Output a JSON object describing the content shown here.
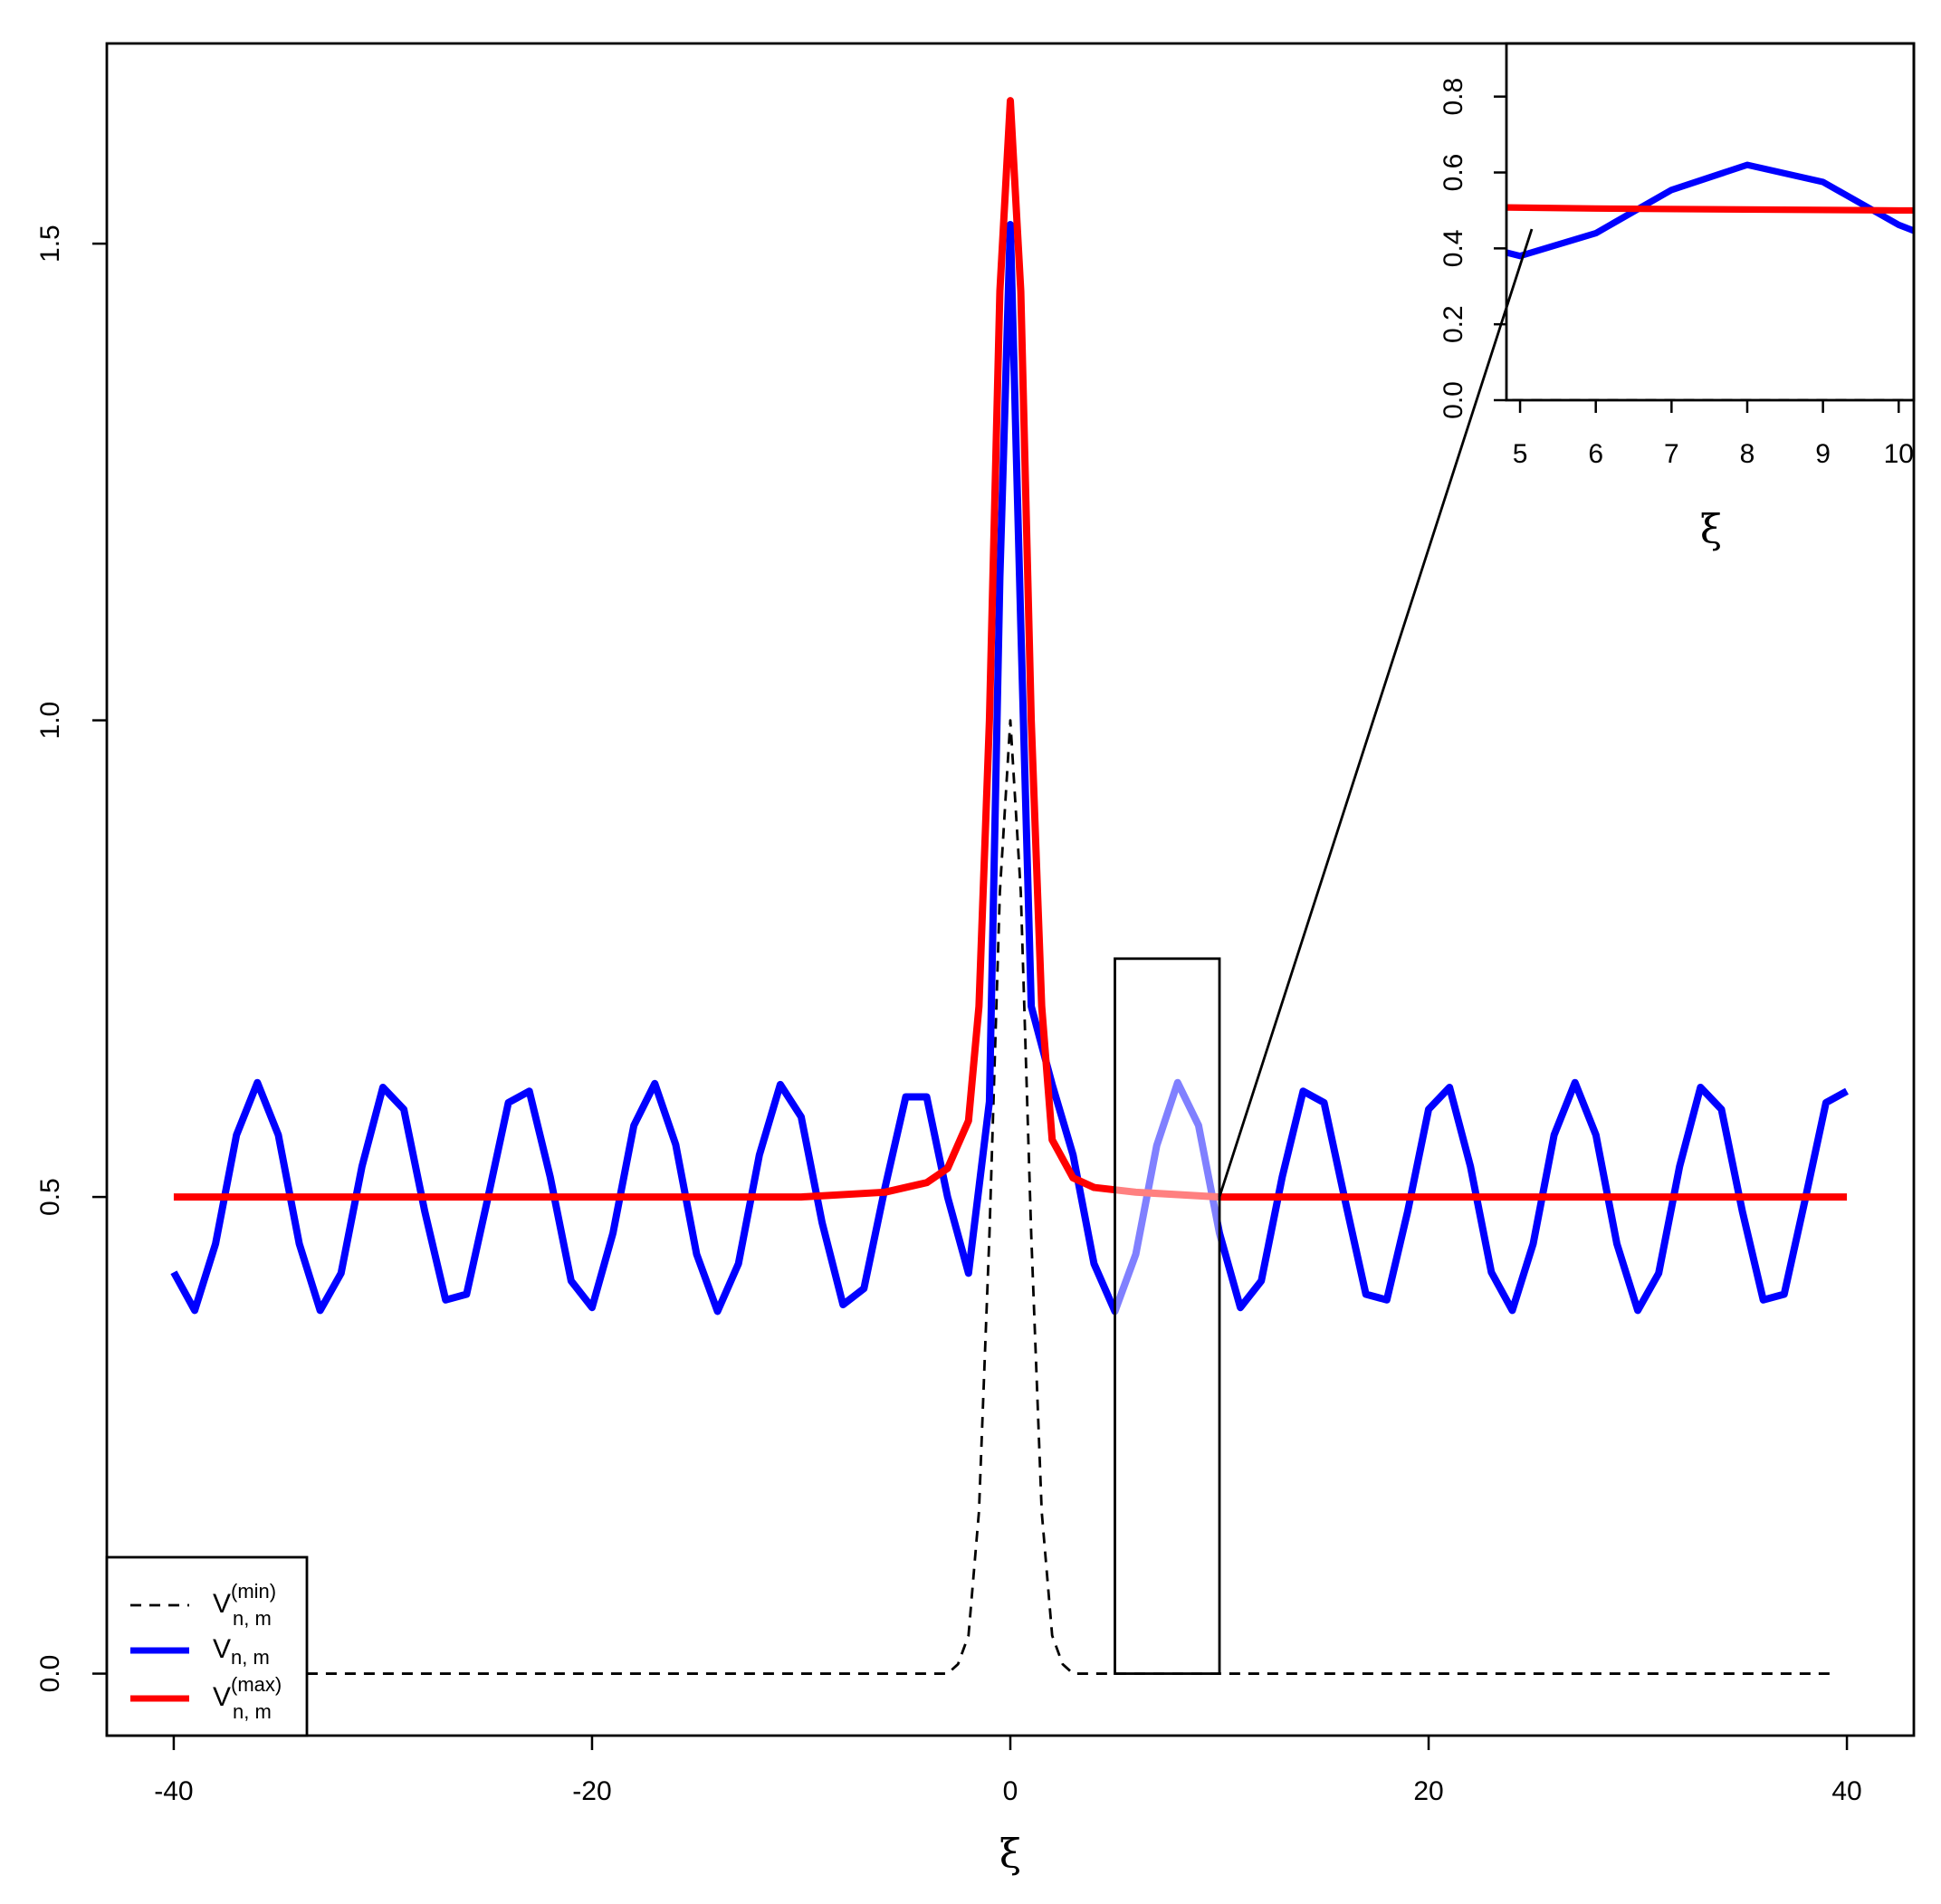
{
  "chart_data": {
    "type": "line",
    "xlabel": "ξ",
    "xlim": [
      -43.2,
      43.2
    ],
    "ylim": [
      -0.065,
      1.71
    ],
    "xticks": [
      -40,
      -20,
      0,
      20,
      40
    ],
    "yticks": [
      {
        "value": 0,
        "label": "0.0"
      },
      0.5,
      {
        "value": 1,
        "label": "1.0"
      },
      1.5
    ],
    "legend": "lower left",
    "series": [
      {
        "name": "V",
        "subscript": "n, m",
        "superscript": "(min)",
        "color": "#000000",
        "dashed": true,
        "x": [
          -40,
          -3,
          -2.5,
          -2,
          -1.5,
          -1,
          -0.5,
          0,
          0.5,
          1,
          1.5,
          2,
          2.5,
          3,
          39.5
        ],
        "values": [
          0,
          0,
          0.01,
          0.04,
          0.17,
          0.46,
          0.82,
          1,
          0.82,
          0.46,
          0.17,
          0.04,
          0.01,
          0,
          0
        ]
      },
      {
        "name": "V",
        "subscript": "n, m",
        "color": "#0000ff",
        "dashed": false,
        "x": [
          -40,
          -39,
          -38,
          -37,
          -36,
          -35,
          -34,
          -33,
          -32,
          -31,
          -30,
          -29,
          -28,
          -27,
          -26,
          -25,
          -24,
          -23,
          -22,
          -21,
          -20,
          -19,
          -18,
          -17,
          -16,
          -15,
          -14,
          -13,
          -12,
          -11,
          -10,
          -9,
          -8,
          -7,
          -6,
          -5,
          -4,
          -3,
          -2,
          -1,
          -0.5,
          0,
          0.5,
          1,
          2,
          3,
          4,
          5,
          6,
          7,
          8,
          9,
          10,
          11,
          12,
          13,
          14,
          15,
          16,
          17,
          18,
          19,
          20,
          21,
          22,
          23,
          24,
          25,
          26,
          27,
          28,
          29,
          30,
          31,
          32,
          33,
          34,
          35,
          36,
          37,
          38,
          39,
          40
        ],
        "values": [
          0.421,
          0.381,
          0.451,
          0.565,
          0.62,
          0.565,
          0.451,
          0.381,
          0.42,
          0.532,
          0.615,
          0.592,
          0.485,
          0.392,
          0.398,
          0.497,
          0.599,
          0.611,
          0.521,
          0.412,
          0.384,
          0.462,
          0.575,
          0.619,
          0.555,
          0.44,
          0.38,
          0.43,
          0.544,
          0.618,
          0.584,
          0.473,
          0.387,
          0.404,
          0.509,
          0.605,
          0.605,
          0.5,
          0.42,
          0.6,
          1.15,
          1.52,
          1.1,
          0.7,
          0.618,
          0.544,
          0.43,
          0.38,
          0.44,
          0.554,
          0.62,
          0.575,
          0.462,
          0.384,
          0.412,
          0.521,
          0.611,
          0.599,
          0.497,
          0.398,
          0.392,
          0.485,
          0.592,
          0.615,
          0.532,
          0.421,
          0.381,
          0.451,
          0.565,
          0.62,
          0.565,
          0.451,
          0.381,
          0.42,
          0.532,
          0.615,
          0.592,
          0.485,
          0.392,
          0.398,
          0.497,
          0.599,
          0.611
        ]
      },
      {
        "name": "V",
        "subscript": "n, m",
        "superscript": "(max)",
        "color": "#ff0000",
        "dashed": false,
        "x": [
          -40,
          -10,
          -6,
          -4,
          -3,
          -2,
          -1.5,
          -1,
          -0.5,
          0,
          0.5,
          1,
          1.5,
          2,
          3,
          4,
          6,
          10,
          40
        ],
        "values": [
          0.5,
          0.5,
          0.505,
          0.515,
          0.53,
          0.58,
          0.7,
          1.0,
          1.45,
          1.65,
          1.45,
          1.0,
          0.7,
          0.56,
          0.52,
          0.51,
          0.505,
          0.5,
          0.5
        ]
      }
    ],
    "highlight": {
      "xlim": [
        5,
        10
      ],
      "ylim": [
        0,
        0.75
      ]
    },
    "inset": {
      "xlabel": "ξ",
      "xlim": [
        4.82,
        10.2
      ],
      "ylim": [
        0,
        0.94
      ],
      "xticks": [
        5,
        6,
        7,
        8,
        9,
        10
      ],
      "yticks": [
        {
          "value": 0,
          "label": "0.0"
        },
        0.2,
        0.4,
        0.6,
        0.8
      ]
    }
  }
}
